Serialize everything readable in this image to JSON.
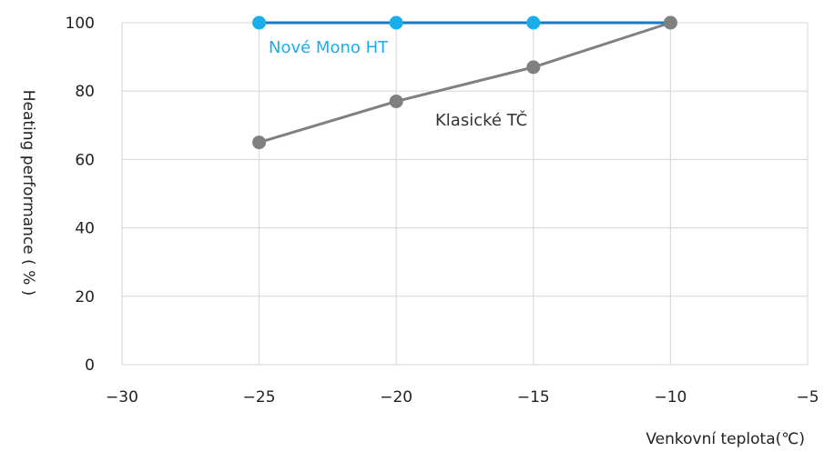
{
  "chart_data": {
    "type": "line",
    "title": "",
    "xlabel": "Venkovní teplota(℃)",
    "ylabel": "Heating performance ( % )",
    "xlim": [
      -30,
      -5
    ],
    "ylim": [
      0,
      100
    ],
    "x_ticks": [
      -30,
      -25,
      -20,
      -15,
      -10,
      -5
    ],
    "y_ticks": [
      0,
      20,
      40,
      60,
      80,
      100
    ],
    "x_tick_labels": [
      "−30",
      "−25",
      "−20",
      "−15",
      "−10",
      "−5"
    ],
    "y_tick_labels": [
      "0",
      "20",
      "40",
      "60",
      "80",
      "100"
    ],
    "grid": true,
    "series": [
      {
        "name": "Nové Mono HT",
        "color": "#1aaee8",
        "line_color": "#1f77c4",
        "x": [
          -25,
          -20,
          -15,
          -10
        ],
        "y": [
          100,
          100,
          100,
          100
        ]
      },
      {
        "name": "Klasické TČ",
        "color": "#808080",
        "line_color": "#808080",
        "x": [
          -25,
          -20,
          -15,
          -10
        ],
        "y": [
          65,
          77,
          87,
          100
        ]
      }
    ]
  }
}
